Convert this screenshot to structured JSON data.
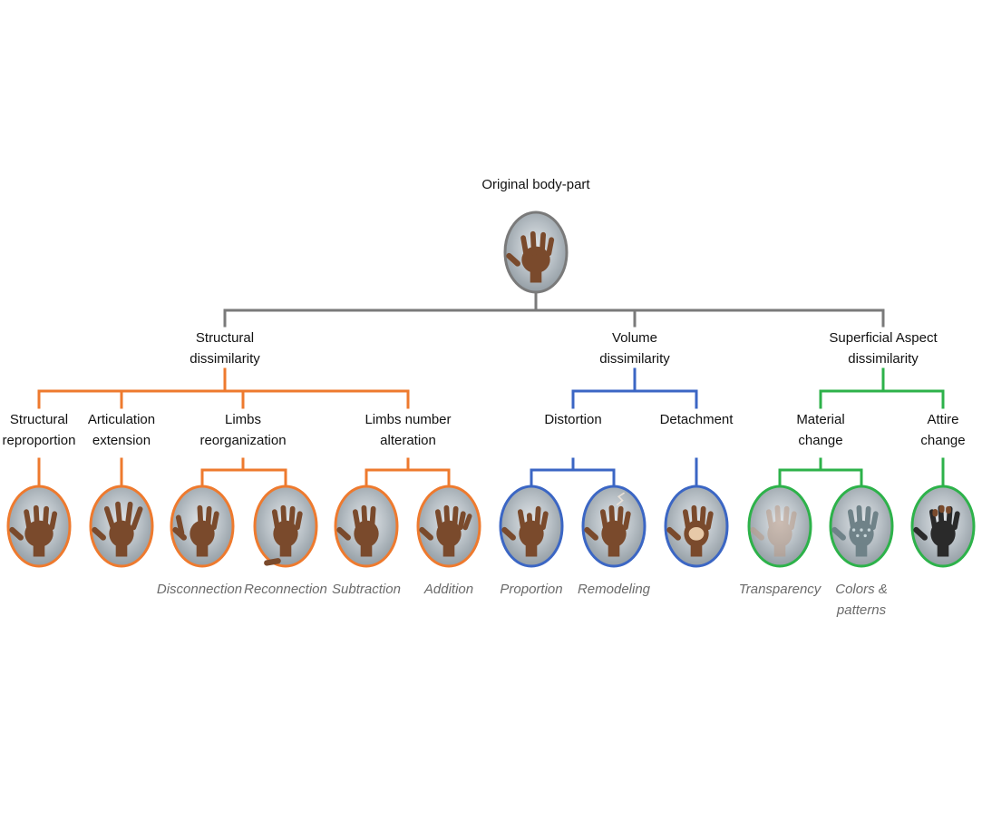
{
  "root": {
    "label": "Original body-part"
  },
  "colors": {
    "root": "#7a7a7a",
    "structural": "#ee7a2e",
    "volume": "#3b66c4",
    "superficial": "#2db24a",
    "skin": "#7a4a2c",
    "ellipse_fill": "#a9b3ba"
  },
  "categories": [
    {
      "key": "structural",
      "label_lines": [
        "Structural",
        "dissimilarity"
      ],
      "children": [
        {
          "label_lines": [
            "Structural",
            "reproportion"
          ],
          "leaves": [
            {
              "hand": "wide",
              "caption": []
            }
          ]
        },
        {
          "label_lines": [
            "Articulation",
            "extension"
          ],
          "leaves": [
            {
              "hand": "spread",
              "caption": []
            }
          ]
        },
        {
          "label_lines": [
            "Limbs",
            "reorganization"
          ],
          "leaves": [
            {
              "hand": "disconnect",
              "caption": [
                "Disconnection"
              ]
            },
            {
              "hand": "reconnect",
              "caption": [
                "Reconnection"
              ]
            }
          ]
        },
        {
          "label_lines": [
            "Limbs number",
            "alteration"
          ],
          "leaves": [
            {
              "hand": "subtract",
              "caption": [
                "Subtraction"
              ]
            },
            {
              "hand": "add",
              "caption": [
                "Addition"
              ]
            }
          ]
        }
      ]
    },
    {
      "key": "volume",
      "label_lines": [
        "Volume",
        "dissimilarity"
      ],
      "children": [
        {
          "label_lines": [
            "Distortion"
          ],
          "leaves": [
            {
              "hand": "proportion",
              "caption": [
                "Proportion"
              ]
            },
            {
              "hand": "remodel",
              "caption": [
                "Remodeling"
              ]
            }
          ]
        },
        {
          "label_lines": [
            "Detachment"
          ],
          "leaves": [
            {
              "hand": "detach",
              "caption": []
            }
          ]
        }
      ]
    },
    {
      "key": "superficial",
      "label_lines": [
        "Superficial Aspect",
        "dissimilarity"
      ],
      "children": [
        {
          "label_lines": [
            "Material",
            "change"
          ],
          "leaves": [
            {
              "hand": "transparent",
              "caption": [
                "Transparency"
              ]
            },
            {
              "hand": "pattern",
              "caption": [
                "Colors &",
                "patterns"
              ]
            }
          ]
        },
        {
          "label_lines": [
            "Attire",
            "change"
          ],
          "leaves": [
            {
              "hand": "glove",
              "caption": []
            }
          ]
        }
      ]
    }
  ]
}
